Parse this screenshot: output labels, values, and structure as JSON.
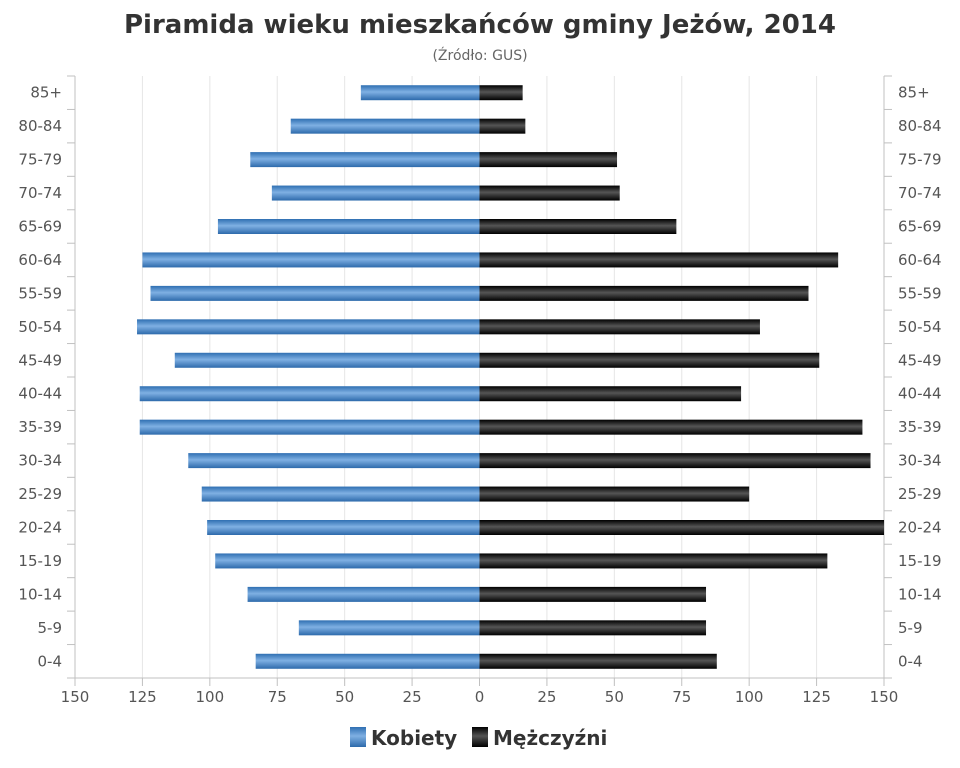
{
  "chart_data": {
    "type": "bar",
    "orientation": "horizontal",
    "layout": "population-pyramid",
    "title": "Piramida wieku mieszkańców gminy Jeżów, 2014",
    "subtitle": "(Źródło: GUS)",
    "categories": [
      "85+",
      "80-84",
      "75-79",
      "70-74",
      "65-69",
      "60-64",
      "55-59",
      "50-54",
      "45-49",
      "40-44",
      "35-39",
      "30-34",
      "25-29",
      "20-24",
      "15-19",
      "10-14",
      "5-9",
      "0-4"
    ],
    "series": [
      {
        "name": "Kobiety",
        "side": "left",
        "color": "#4a86c8",
        "values": [
          44,
          70,
          85,
          77,
          97,
          125,
          122,
          127,
          113,
          126,
          126,
          108,
          103,
          101,
          98,
          86,
          67,
          83
        ]
      },
      {
        "name": "Mężczyźni",
        "side": "right",
        "color": "#1a1a1a",
        "values": [
          16,
          17,
          51,
          52,
          73,
          133,
          122,
          104,
          126,
          97,
          142,
          145,
          100,
          150,
          129,
          84,
          84,
          88
        ]
      }
    ],
    "x_tick_labels": [
      "150",
      "125",
      "100",
      "75",
      "50",
      "25",
      "0",
      "25",
      "50",
      "75",
      "100",
      "125",
      "150"
    ],
    "xlim": [
      -150,
      150
    ],
    "grid": true,
    "legend": "bottom-center"
  }
}
